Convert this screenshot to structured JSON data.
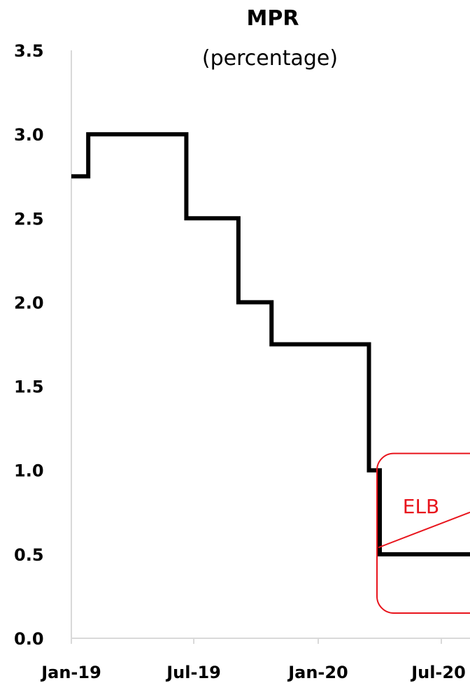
{
  "chart_data": {
    "type": "line",
    "style": "step",
    "title": "MPR",
    "subtitle": "(percentage)",
    "xlabel": "",
    "ylabel": "",
    "ylim": [
      0,
      3.5
    ],
    "y_ticks": [
      "0.0",
      "0.5",
      "1.0",
      "1.5",
      "2.0",
      "2.5",
      "3.0",
      "3.5"
    ],
    "x_ticks": [
      "Jan-19",
      "Jul-19",
      "Jan-20",
      "Jul-20"
    ],
    "x_tick_dates": [
      "2019-01-01",
      "2019-07-01",
      "2020-01-01",
      "2020-07-01"
    ],
    "grid": false,
    "legend": false,
    "line_color": "#000000",
    "series": [
      {
        "x": [
          "2019-01-01",
          "2019-01-26",
          "2019-06-20",
          "2019-09-05",
          "2019-10-24",
          "2020-03-16",
          "2020-04-01",
          "2020-08-15"
        ],
        "values": [
          2.75,
          3.0,
          2.5,
          2.0,
          1.75,
          1.0,
          0.5,
          0.5
        ]
      }
    ],
    "annotation": {
      "text": "ELB",
      "color": "#e8141c",
      "region_x": [
        "2020-04-01",
        "2020-08-15"
      ],
      "region_y": [
        0.15,
        1.1
      ]
    }
  }
}
